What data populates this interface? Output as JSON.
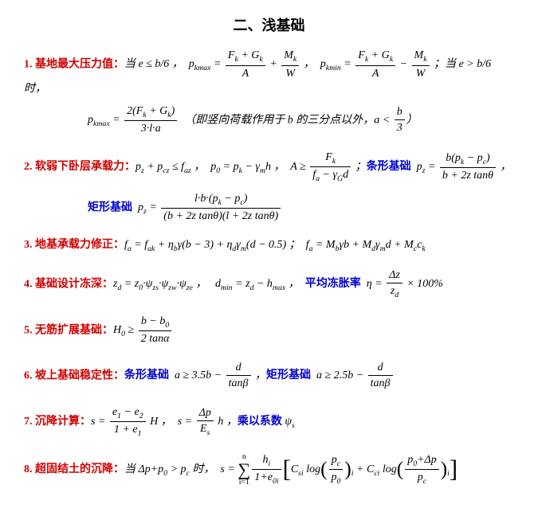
{
  "title": "二、浅基础",
  "items": [
    {
      "num": "1.",
      "head": "基地最大压力值：",
      "body_html": "<span class='math'>当 e ≤ b/6 ，&nbsp; p<sub>kmax</sub> = </span><span class='frac'><span class='fn'>F<sub>k</sub> + G<sub>k</sub></span><span class='fd'>A</span></span><span class='math'> + </span><span class='frac'><span class='fn'>M<sub>k</sub></span><span class='fd'>W</span></span><span class='math'> ，&nbsp; p<sub>kmin</sub> = </span><span class='frac'><span class='fn'>F<sub>k</sub> + G<sub>k</sub></span><span class='fd'>A</span></span><span class='math'> − </span><span class='frac'><span class='fn'>M<sub>k</sub></span><span class='fd'>W</span></span><span class='math'> ；当 e &gt; b/6 时，</span>",
      "cont_html": "<span class='math'>p<sub>kmax</sub> = </span><span class='frac'><span class='fn'>2(F<sub>k</sub> + G<sub>k</sub>)</span><span class='fd'>3·l·a</span></span><span class='math'>&nbsp;&nbsp;（即竖向荷载作用于 b 的三分点以外，a &lt; </span><span class='frac'><span class='fn'>b</span><span class='fd'>3</span></span><span class='math'>）</span>"
    },
    {
      "num": "2.",
      "head": "软弱下卧层承载力：",
      "body_html": "<span class='math'>p<sub>z</sub> + p<sub>cz</sub> ≤ f<sub>az</sub> ，&nbsp; p<sub>0</sub> = p<sub>k</sub> − γ<sub>m</sub>h ，&nbsp; A ≥ </span><span class='frac'><span class='fn'>F<sub>k</sub></span><span class='fd'>f<sub>a</sub> − γ<sub>G</sub>d</span></span><span class='math'> ；</span><span class='sub'>条形基础</span><span class='math'>&nbsp; p<sub>z</sub> = </span><span class='frac'><span class='fn'>b(p<sub>k</sub> − p<sub>c</sub>)</span><span class='fd'>b + 2z tanθ</span></span><span class='math'> ，</span>",
      "cont_html": "<span class='sub'>矩形基础</span><span class='math'>&nbsp; p<sub>z</sub> = </span><span class='frac'><span class='fn'>l·b·(p<sub>k</sub> − p<sub>c</sub>)</span><span class='fd'>(b + 2z tanθ)(l + 2z tanθ)</span></span>"
    },
    {
      "num": "3.",
      "head": "地基承载力修正：",
      "body_html": "<span class='math'>f<sub>a</sub> = f<sub>ak</sub> + η<sub>b</sub>γ(b − 3) + η<sub>d</sub>γ<sub>m</sub>(d − 0.5) ；&nbsp; f<sub>a</sub> = M<sub>b</sub>γb + M<sub>d</sub>γ<sub>m</sub>d + M<sub>c</sub>c<sub>k</sub></span>"
    },
    {
      "num": "4.",
      "head": "基础设计冻深：",
      "body_html": "<span class='math'>z<sub>d</sub> = z<sub>0</sub>·ψ<sub>zs</sub>·ψ<sub>zw</sub>·ψ<sub>ze</sub> ，&nbsp;&nbsp; d<sub>min</sub> = z<sub>d</sub> − h<sub>max</sub> ，&nbsp;&nbsp;</span><span class='sub'>平均冻胀率</span><span class='math'>&nbsp; η = </span><span class='frac'><span class='fn'>Δz</span><span class='fd'>z<sub>d</sub></span></span><span class='math'> × 100%</span>"
    },
    {
      "num": "5.",
      "head": "无筋扩展基础：",
      "body_html": "<span class='math'>H<sub>0</sub> ≥ </span><span class='frac'><span class='fn'>b − b<sub>0</sub></span><span class='fd'>2 tanα</span></span>"
    },
    {
      "num": "6.",
      "head": "坡上基础稳定性：",
      "body_html": "<span class='sub'>条形基础</span><span class='math'>&nbsp; a ≥ 3.5b − </span><span class='frac'><span class='fn'>d</span><span class='fd'>tanβ</span></span><span class='math'> ，</span><span class='sub'>矩形基础</span><span class='math'>&nbsp; a ≥ 2.5b − </span><span class='frac'><span class='fn'>d</span><span class='fd'>tanβ</span></span>"
    },
    {
      "num": "7.",
      "head": "沉降计算：",
      "body_html": "<span class='math'>s = </span><span class='frac'><span class='fn'>e<sub>1</sub> − e<sub>2</sub></span><span class='fd'>1 + e<sub>1</sub></span></span><span class='math'> H ，&nbsp; s = </span><span class='frac'><span class='fn'>Δp</span><span class='fd'>E<sub>s</sub></span></span><span class='math'> h ，</span><span class='sub'>乘以系数</span><span class='math'> ψ<sub>s</sub></span>"
    },
    {
      "num": "8.",
      "head": "超固结土的沉降：",
      "body_html": "<span class='math'>当 Δp+p<sub>0</sub> &gt; p<sub>c</sub> 时，&nbsp; s = </span><span class='sumwrap'><span class='lim'>n</span><span class='bigop'>∑</span><span class='lim'>i=1</span></span><span class='frac'><span class='fn'>h<sub>i</sub></span><span class='fd'>1+e<sub>0i</sub></span></span><span class='brk'>[</span><span class='math'>C<sub>si</sub> log</span><span class='paren'>(</span><span class='frac'><span class='fn'>p<sub>c</sub></span><span class='fd'>p<sub>0</sub></span></span><span class='paren'>)</span><sub style='font-style:italic'>i</sub><span class='math'> + C<sub>ci</sub> log</span><span class='paren'>(</span><span class='frac'><span class='fn'>p<sub>0</sub>+Δp</span><span class='fd'>p<sub>c</sub></span></span><span class='paren'>)</span><sub style='font-style:italic'>i</sub><span class='brk'>]</span>"
    }
  ]
}
